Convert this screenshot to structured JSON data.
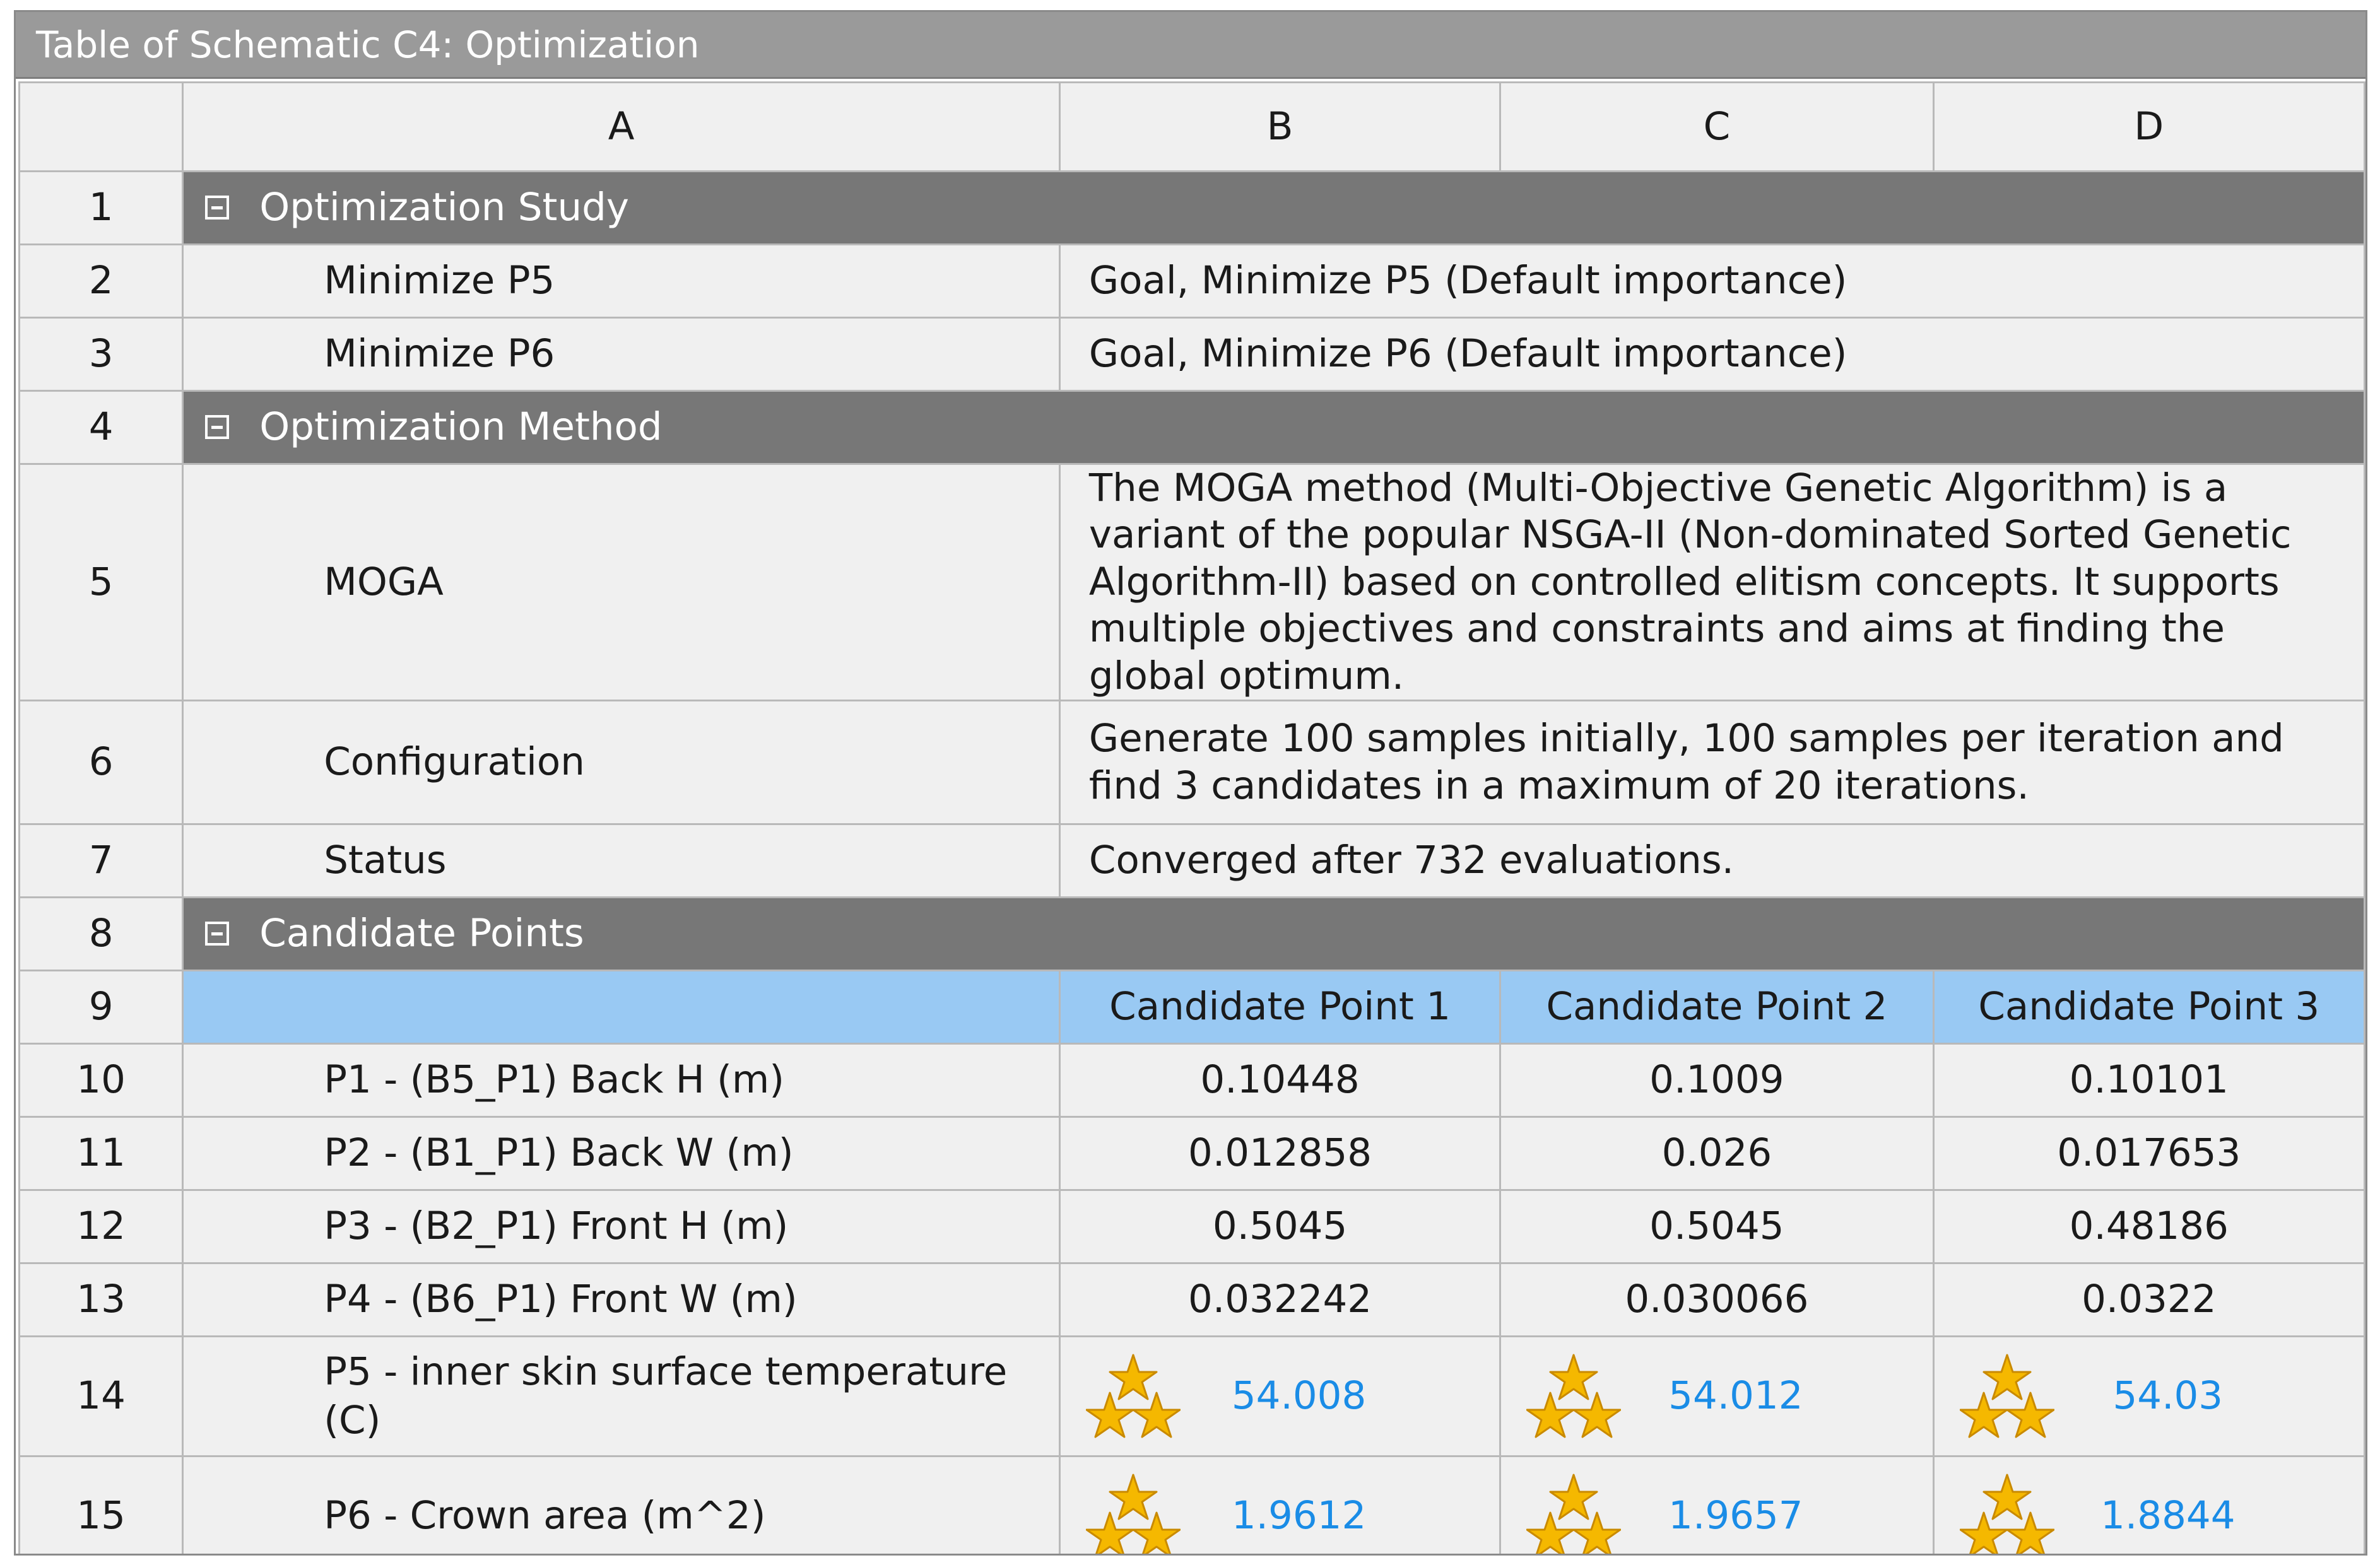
{
  "window": {
    "title": "Table of Schematic C4: Optimization"
  },
  "columns": [
    "A",
    "B",
    "C",
    "D"
  ],
  "sections": {
    "study": {
      "row": "1",
      "label": "Optimization Study"
    },
    "method": {
      "row": "4",
      "label": "Optimization Method"
    },
    "candidates": {
      "row": "8",
      "label": "Candidate Points"
    }
  },
  "study_rows": [
    {
      "row": "2",
      "name": "Minimize P5",
      "value": "Goal, Minimize P5 (Default importance)"
    },
    {
      "row": "3",
      "name": "Minimize P6",
      "value": "Goal, Minimize P6 (Default importance)"
    }
  ],
  "method_rows": [
    {
      "row": "5",
      "name": "MOGA",
      "value": "The MOGA method (Multi-Objective Genetic Algorithm) is a variant of the popular NSGA-II (Non-dominated Sorted Genetic Algorithm-II) based on controlled elitism concepts. It supports multiple objectives and constraints and aims at finding the global optimum."
    },
    {
      "row": "6",
      "name": "Configuration",
      "value": "Generate 100 samples initially, 100 samples per iteration and find 3 candidates in a maximum of 20 iterations."
    },
    {
      "row": "7",
      "name": "Status",
      "value": "Converged after 732 evaluations."
    }
  ],
  "candidate_header": {
    "row": "9",
    "points": [
      "Candidate Point 1",
      "Candidate Point 2",
      "Candidate Point 3"
    ]
  },
  "param_rows": [
    {
      "row": "10",
      "name": "P1 - (B5_P1) Back H (m)",
      "values": [
        "0.10448",
        "0.1009",
        "0.10101"
      ]
    },
    {
      "row": "11",
      "name": "P2 - (B1_P1) Back W (m)",
      "values": [
        "0.012858",
        "0.026",
        "0.017653"
      ]
    },
    {
      "row": "12",
      "name": "P3 - (B2_P1) Front H (m)",
      "values": [
        "0.5045",
        "0.5045",
        "0.48186"
      ]
    },
    {
      "row": "13",
      "name": "P4 - (B6_P1) Front W (m)",
      "values": [
        "0.032242",
        "0.030066",
        "0.0322"
      ]
    }
  ],
  "output_rows": [
    {
      "row": "14",
      "name": "P5 - inner skin surface temperature (C)",
      "values": [
        "54.008",
        "54.012",
        "54.03"
      ],
      "rating_stars": 3
    },
    {
      "row": "15",
      "name": "P6 - Crown area (m^2)",
      "values": [
        "1.9612",
        "1.9657",
        "1.8844"
      ],
      "rating_stars": 3
    }
  ],
  "colors": {
    "section_bg": "#777777",
    "candidate_header_bg": "#99c9f3",
    "output_value": "#1a8ce6",
    "star": "#f5b800"
  },
  "icons": {
    "collapse": "minus-box-icon",
    "rating": "three-star-rating-icon"
  }
}
